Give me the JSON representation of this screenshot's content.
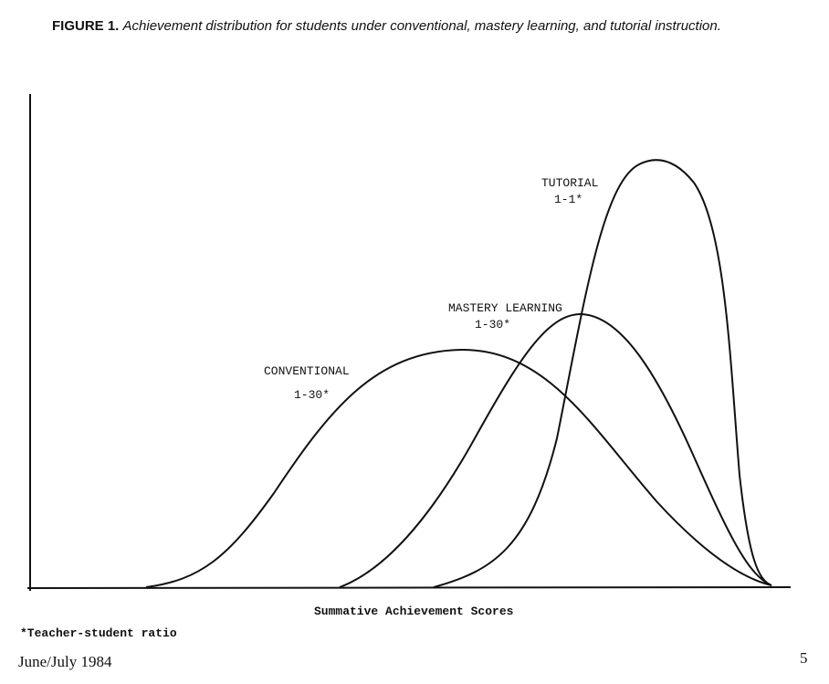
{
  "figure": {
    "label": "FIGURE 1.",
    "caption": "Achievement distribution for students under conventional, mastery learning, and tutorial instruction."
  },
  "curves": [
    {
      "name": "CONVENTIONAL",
      "ratio": "1-30*"
    },
    {
      "name": "MASTERY LEARNING",
      "ratio": "1-30*"
    },
    {
      "name": "TUTORIAL",
      "ratio": "1-1*"
    }
  ],
  "x_axis_label": "Summative Achievement Scores",
  "footnote": "*Teacher-student ratio",
  "footer": {
    "left": "June/July 1984",
    "page": "5"
  }
}
